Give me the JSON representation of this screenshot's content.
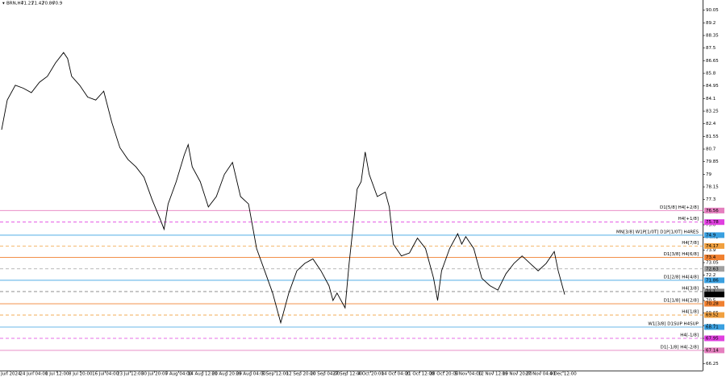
{
  "chart_data": {
    "type": "line",
    "symbol": "BRN,H4",
    "ohlc": [
      71.21,
      71.42,
      70.86,
      70.9
    ],
    "current_price": 70.9,
    "x": [
      0,
      7,
      17,
      27,
      37,
      47,
      57,
      67,
      77,
      82,
      87,
      97,
      107,
      117,
      127,
      137,
      147,
      157,
      167,
      177,
      187,
      197,
      202,
      207,
      217,
      227,
      232,
      237,
      247,
      257,
      267,
      277,
      287,
      297,
      307,
      317,
      327,
      337,
      347,
      357,
      367,
      377,
      387,
      397,
      407,
      412,
      417,
      427,
      432,
      437,
      442,
      447,
      452,
      457,
      467,
      477,
      482,
      487,
      497,
      507,
      517,
      527,
      537,
      542,
      547,
      557,
      567,
      572,
      577,
      587,
      597,
      607,
      617,
      627,
      637,
      647,
      657,
      667,
      677,
      687,
      692,
      697,
      700
    ],
    "values": [
      82.0,
      84.0,
      85.0,
      84.8,
      84.5,
      85.2,
      85.6,
      86.5,
      87.2,
      86.8,
      85.6,
      85.0,
      84.2,
      84.0,
      84.6,
      82.5,
      80.8,
      80.0,
      79.5,
      78.8,
      77.3,
      76.0,
      75.3,
      77.0,
      78.5,
      80.3,
      81.0,
      79.5,
      78.5,
      76.8,
      77.5,
      79.0,
      79.8,
      77.5,
      77.0,
      74.0,
      72.5,
      71.0,
      69.0,
      71.0,
      72.5,
      73.0,
      73.3,
      72.5,
      71.5,
      70.5,
      71.0,
      70.0,
      73.0,
      75.5,
      78.0,
      78.5,
      80.5,
      79.0,
      77.5,
      77.8,
      76.8,
      74.3,
      73.5,
      73.7,
      74.7,
      74.0,
      72.0,
      70.5,
      72.5,
      74.0,
      75.0,
      74.3,
      74.8,
      74.0,
      72.0,
      71.5,
      71.2,
      72.3,
      73.0,
      73.5,
      73.0,
      72.5,
      73.0,
      73.8,
      72.5,
      71.5,
      70.9
    ],
    "color": "#000000",
    "xlim": [
      0,
      705
    ],
    "ylim": [
      65.78,
      90.74
    ],
    "yticks": [
      90.05,
      89.2,
      88.35,
      87.5,
      86.65,
      85.8,
      84.95,
      84.1,
      83.25,
      82.4,
      81.55,
      80.7,
      79.85,
      79.0,
      78.15,
      77.3,
      76.45,
      75.6,
      74.75,
      73.9,
      73.05,
      72.2,
      71.35,
      70.5,
      69.65,
      68.8,
      67.95,
      67.1,
      66.25
    ],
    "xticks": [
      {
        "value": 7,
        "label": "14 Jun 2024"
      },
      {
        "value": 40,
        "label": "24 Jun 04:00"
      },
      {
        "value": 69,
        "label": "1 Jul 12:00"
      },
      {
        "value": 98,
        "label": "8 Jul 20:00"
      },
      {
        "value": 129,
        "label": "16 Jul 04:00"
      },
      {
        "value": 160,
        "label": "23 Jul 12:00"
      },
      {
        "value": 190,
        "label": "30 Jul 20:00"
      },
      {
        "value": 220,
        "label": "7 Aug 04:00"
      },
      {
        "value": 250,
        "label": "14 Aug 12:00"
      },
      {
        "value": 280,
        "label": "21 Aug 20:00"
      },
      {
        "value": 310,
        "label": "29 Aug 04:00"
      },
      {
        "value": 340,
        "label": "5 Sep 12:00"
      },
      {
        "value": 372,
        "label": "12 Sep 20:00"
      },
      {
        "value": 402,
        "label": "20 Sep 04:00"
      },
      {
        "value": 430,
        "label": "27 Sep 12:00"
      },
      {
        "value": 459,
        "label": "4 Oct 20:00"
      },
      {
        "value": 490,
        "label": "14 Oct 04:00"
      },
      {
        "value": 520,
        "label": "21 Oct 12:00"
      },
      {
        "value": 550,
        "label": "28 Oct 20:00"
      },
      {
        "value": 580,
        "label": "5 Nov 04:00"
      },
      {
        "value": 611,
        "label": "12 Nov 12:00"
      },
      {
        "value": 641,
        "label": "19 Nov 20:00"
      },
      {
        "value": 670,
        "label": "27 Nov 04:00"
      },
      {
        "value": 698,
        "label": "4 Dec 12:00"
      }
    ],
    "levels": [
      {
        "price": 76.56,
        "label": "D1[5/8] H4[+2/8]",
        "color": "#e57fbf",
        "dashed": false
      },
      {
        "price": 75.78,
        "label": "H4[+1/8]",
        "color": "#e040e0",
        "dashed": true
      },
      {
        "price": 74.9,
        "label": "MN[3/8] W1P[1/0T] D1P[1/0T] H4RES",
        "color": "#3aa0e0",
        "dashed": false
      },
      {
        "price": 74.17,
        "label": "H4[7/8]",
        "color": "#f0a040",
        "dashed": true
      },
      {
        "price": 73.4,
        "label": "D1[3/8] H4[6/8]",
        "color": "#f08030",
        "dashed": false
      },
      {
        "price": 72.63,
        "color": "#a0a0a0",
        "dashed": true
      },
      {
        "price": 71.86,
        "label": "D1[2/8] H4[4/8]",
        "color": "#3aa0e0",
        "dashed": false
      },
      {
        "price": 71.1,
        "label": "H4[3/8]",
        "color": "#808080",
        "dashed": true
      },
      {
        "price": 70.28,
        "label": "D1[1/8] H4[2/8]",
        "color": "#f08030",
        "dashed": false
      },
      {
        "price": 69.52,
        "label": "H4[1/8]",
        "color": "#f0a040",
        "dashed": true
      },
      {
        "price": 68.71,
        "label": "W1[3/8] D1SUP H4SUP",
        "color": "#3aa0e0",
        "dashed": false
      },
      {
        "price": 67.95,
        "label": "H4[-1/8]",
        "color": "#e040e0",
        "dashed": true
      },
      {
        "price": 67.14,
        "label": "D1[-1/8] H4[-2/8]",
        "color": "#e57fbf",
        "dashed": false
      }
    ]
  }
}
